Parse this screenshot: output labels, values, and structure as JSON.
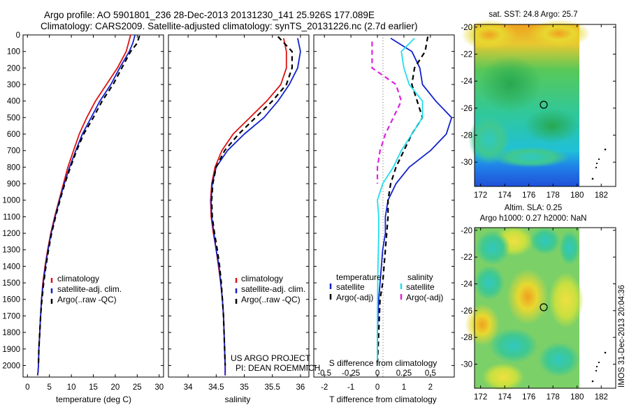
{
  "header": {
    "line1": "Argo profile: AO 5901801_236 28-Dec-2013 20131230_141 25.926S 177.089E",
    "line2": "Climatology: CARS2009. Satellite-adjusted climatology: synTS_20131226.nc (2.7d earlier)"
  },
  "side_label": "IMOS 31-Dec-2013 20:04:36",
  "credit": {
    "line1": "US ARGO PROJECT",
    "line2": "PI: DEAN ROEMMICH"
  },
  "colors": {
    "climatology": "#dd1111",
    "satellite": "#1122cc",
    "argo": "#000000",
    "cyan": "#22ddee",
    "magenta": "#dd22dd"
  },
  "chart_data": [
    {
      "type": "line",
      "xlabel": "temperature (deg C)",
      "ylabel": "",
      "xlim": [
        -1,
        31
      ],
      "ylim": [
        2070,
        0
      ],
      "xticks": [
        0,
        5,
        10,
        15,
        20,
        25,
        30
      ],
      "yticks": [
        0,
        100,
        200,
        300,
        400,
        500,
        600,
        700,
        800,
        900,
        1000,
        1100,
        1200,
        1300,
        1400,
        1500,
        1600,
        1700,
        1800,
        1900,
        2000
      ],
      "legend": [
        "climatology",
        "satellite-adj. clim.",
        "Argo(..raw -QC)"
      ],
      "legend_position": "lower-right",
      "series": [
        {
          "name": "climatology",
          "color": "#dd1111",
          "style": "solid",
          "x": [
            23.5,
            23,
            22.5,
            20.5,
            18,
            15.5,
            13.5,
            11.8,
            10.5,
            9.2,
            8.2,
            7.2,
            6.2,
            5.3,
            4.6,
            4,
            3.5,
            3.2,
            3,
            2.8,
            2.6,
            2.5,
            2.4,
            2.3
          ],
          "y": [
            0,
            50,
            100,
            200,
            300,
            400,
            500,
            600,
            700,
            800,
            900,
            1000,
            1100,
            1200,
            1300,
            1400,
            1500,
            1600,
            1700,
            1800,
            1900,
            2000,
            2040,
            2060
          ]
        },
        {
          "name": "satellite-adj. clim.",
          "color": "#1122cc",
          "style": "solid",
          "x": [
            24.5,
            24,
            23.2,
            21,
            19,
            16.5,
            14.5,
            12.5,
            11,
            9.6,
            8.4,
            7.3,
            6.3,
            5.4,
            4.7,
            4.1,
            3.6,
            3.2,
            3,
            2.8,
            2.6,
            2.5,
            2.4,
            2.3
          ],
          "y": [
            0,
            50,
            100,
            200,
            300,
            400,
            500,
            600,
            700,
            800,
            900,
            1000,
            1100,
            1200,
            1300,
            1400,
            1500,
            1600,
            1700,
            1800,
            1900,
            2000,
            2040,
            2060
          ]
        },
        {
          "name": "Argo(..raw -QC)",
          "color": "#000000",
          "style": "dashed",
          "x": [
            25.5,
            25,
            23.5,
            21.5,
            19.5,
            17,
            15,
            12.8,
            11.2,
            9.8,
            8.5,
            7.4,
            6.4,
            5.5,
            4.8,
            4.2,
            3.7,
            3.3,
            3,
            2.8,
            2.6,
            2.5
          ],
          "y": [
            5,
            50,
            100,
            200,
            300,
            400,
            500,
            600,
            700,
            800,
            900,
            1000,
            1100,
            1200,
            1300,
            1400,
            1500,
            1600,
            1700,
            1800,
            1900,
            2000
          ]
        }
      ]
    },
    {
      "type": "line",
      "xlabel": "salinity",
      "ylabel": "",
      "xlim": [
        33.65,
        36.15
      ],
      "ylim": [
        2070,
        0
      ],
      "xticks": [
        34,
        34.5,
        35,
        35.5,
        36
      ],
      "legend": [
        "climatology",
        "satellite-adj. clim.",
        "Argo(..raw -QC)"
      ],
      "legend_position": "lower-right",
      "series": [
        {
          "name": "climatology",
          "color": "#dd1111",
          "style": "solid",
          "x": [
            35.7,
            35.75,
            35.75,
            35.65,
            35.4,
            35.1,
            34.8,
            34.6,
            34.48,
            34.42,
            34.4,
            34.41,
            34.45,
            34.5,
            34.54,
            34.58,
            34.61,
            34.63,
            34.64,
            34.65,
            34.66,
            34.66
          ],
          "y": [
            20,
            100,
            200,
            300,
            400,
            500,
            600,
            700,
            800,
            900,
            1000,
            1100,
            1200,
            1300,
            1400,
            1500,
            1600,
            1700,
            1800,
            1900,
            2000,
            2060
          ]
        },
        {
          "name": "satellite-adj. clim.",
          "color": "#1122cc",
          "style": "solid",
          "x": [
            35.95,
            36,
            35.95,
            35.8,
            35.6,
            35.35,
            35,
            34.7,
            34.5,
            34.43,
            34.41,
            34.42,
            34.46,
            34.5,
            34.55,
            34.58,
            34.61,
            34.63,
            34.64,
            34.65,
            34.66,
            34.66
          ],
          "y": [
            20,
            100,
            200,
            300,
            400,
            500,
            600,
            700,
            800,
            900,
            1000,
            1100,
            1200,
            1300,
            1400,
            1500,
            1600,
            1700,
            1800,
            1900,
            2000,
            2060
          ]
        },
        {
          "name": "Argo(..raw -QC)",
          "color": "#000000",
          "style": "dashed",
          "x": [
            35.6,
            35.85,
            35.85,
            35.75,
            35.5,
            35.2,
            34.9,
            34.65,
            34.5,
            34.44,
            34.42,
            34.43,
            34.47,
            34.52,
            34.56,
            34.59,
            34.61,
            34.63,
            34.64,
            34.65,
            34.66
          ],
          "y": [
            10,
            100,
            200,
            300,
            400,
            500,
            600,
            700,
            800,
            900,
            1000,
            1100,
            1200,
            1300,
            1400,
            1500,
            1600,
            1700,
            1800,
            1900,
            2000
          ]
        }
      ]
    },
    {
      "type": "line",
      "xlabel": "T difference from climatology",
      "xlabel_top": "S difference from climatology",
      "xlim": [
        -2.4,
        2.9
      ],
      "ylim": [
        2070,
        0
      ],
      "xticks": [
        -2,
        -1,
        0,
        1,
        2
      ],
      "top_ticks": [
        {
          "label": "-0.5",
          "x": -2
        },
        {
          "label": "-0.25",
          "x": -1
        },
        {
          "label": "0",
          "x": 0
        },
        {
          "label": "0.25",
          "x": 1
        },
        {
          "label": "0.5",
          "x": 2
        }
      ],
      "zero_line": true,
      "legend_headers": [
        "temperature",
        "salinity"
      ],
      "legend": [
        "satellite",
        "Argo(-adj)",
        "satellite",
        "Argo(-adj)"
      ],
      "series": [
        {
          "name": "satellite",
          "color": "#1122cc",
          "style": "solid",
          "x": [
            0.5,
            1.3,
            1.6,
            1.7,
            2.2,
            2.8,
            2.6,
            2.0,
            1.2,
            0.7,
            0.4,
            0.3,
            0.3,
            0.2,
            0.15,
            0.1,
            0.05,
            0.02,
            0,
            0
          ],
          "y": [
            20,
            100,
            200,
            300,
            400,
            500,
            600,
            700,
            800,
            900,
            1000,
            1100,
            1200,
            1300,
            1400,
            1500,
            1600,
            1700,
            1800,
            2000
          ]
        },
        {
          "name": "Argo(-adj)",
          "color": "#000000",
          "style": "dashed",
          "x": [
            1.9,
            1.8,
            1.4,
            1.3,
            1.5,
            1.7,
            1.3,
            1.0,
            0.7,
            0.5,
            0.4,
            0.4,
            0.35,
            0.3,
            0.25,
            0.2,
            0.1,
            0.05,
            0
          ],
          "y": [
            10,
            100,
            200,
            300,
            400,
            500,
            600,
            700,
            800,
            900,
            1000,
            1100,
            1200,
            1300,
            1400,
            1500,
            1600,
            1800,
            2000
          ]
        },
        {
          "name": "satellite",
          "color": "#22ddee",
          "style": "solid",
          "x": [
            1.4,
            0.9,
            1.0,
            1.2,
            1.7,
            1.7,
            1.3,
            0.9,
            0.6,
            0.2,
            0,
            0.05,
            0.05,
            0.02,
            0,
            0
          ],
          "y": [
            20,
            100,
            200,
            300,
            400,
            500,
            600,
            700,
            800,
            900,
            1000,
            1100,
            1200,
            1400,
            1700,
            2000
          ]
        },
        {
          "name": "Argo(-adj)",
          "color": "#dd22dd",
          "style": "dashed",
          "x": [
            -0.2,
            -0.2,
            -0.2,
            0.7,
            0.9,
            0.6,
            0.3,
            0.1,
            0,
            0
          ],
          "y": [
            40,
            100,
            200,
            300,
            400,
            500,
            600,
            700,
            800,
            900
          ]
        }
      ]
    },
    {
      "type": "heatmap",
      "title": "sat. SST: 24.8  Argo: 25.7",
      "xticks": [
        172,
        174,
        176,
        178,
        180,
        182
      ],
      "yticks": [
        -20,
        -22,
        -24,
        -26,
        -28,
        -30
      ],
      "xlim": [
        171.5,
        183.2
      ],
      "ylim": [
        -31.8,
        -19.8
      ],
      "marker": [
        177.1,
        -25.9
      ]
    },
    {
      "type": "heatmap",
      "title": "Altim. SLA: 0.25",
      "subtitle": "Argo h1000: 0.27 h2000: NaN",
      "xticks": [
        172,
        174,
        176,
        178,
        180,
        182
      ],
      "yticks": [
        -20,
        -22,
        -24,
        -26,
        -28,
        -30
      ],
      "xlim": [
        171.5,
        183.2
      ],
      "ylim": [
        -31.8,
        -19.8
      ],
      "marker": [
        177.1,
        -25.9
      ]
    }
  ]
}
